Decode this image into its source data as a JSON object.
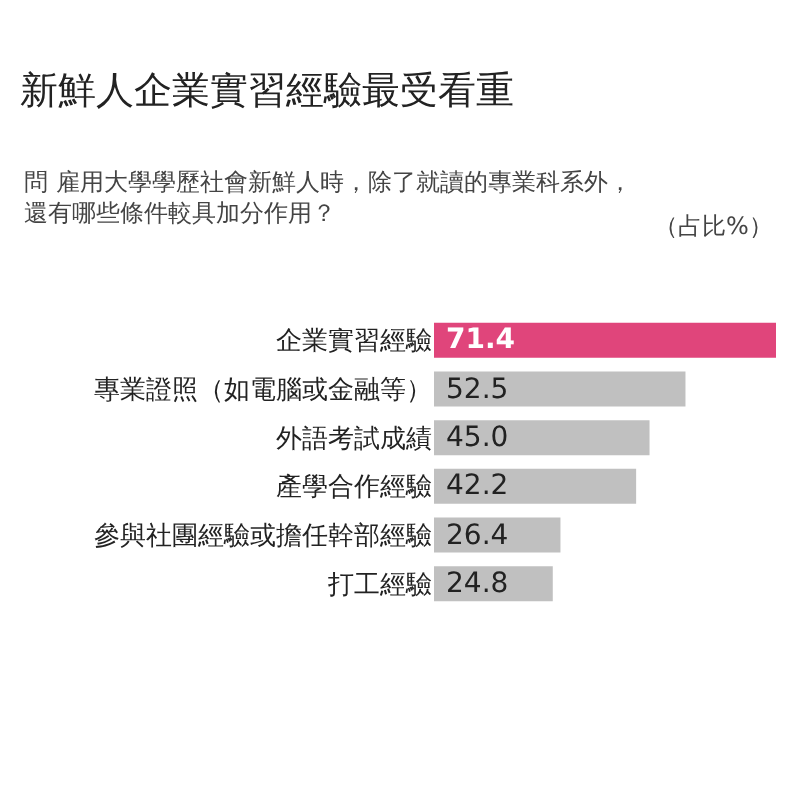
{
  "chart_data": {
    "type": "bar",
    "orientation": "horizontal",
    "title": "新鮮人企業實習經驗最受看重",
    "subtitle": "問 雇用大學學歷社會新鮮人時，除了就讀的專業科系外，還有哪些條件較具加分作用？",
    "annotations": [
      "（占比%）"
    ],
    "categories": [
      "企業實習經驗",
      "專業證照（如電腦或金融等）",
      "外語考試成績",
      "產學合作經驗",
      "參與社團經驗或擔任幹部經驗",
      "打工經驗"
    ],
    "values": [
      71.4,
      52.5,
      45.0,
      42.2,
      26.4,
      24.8
    ],
    "value_labels": [
      "71.4",
      "52.5",
      "45.0",
      "42.2",
      "26.4",
      "24.8"
    ],
    "colors": [
      "#e0457b",
      "#c0c0c0",
      "#c0c0c0",
      "#c0c0c0",
      "#c0c0c0",
      "#c0c0c0"
    ],
    "legend": false
  }
}
